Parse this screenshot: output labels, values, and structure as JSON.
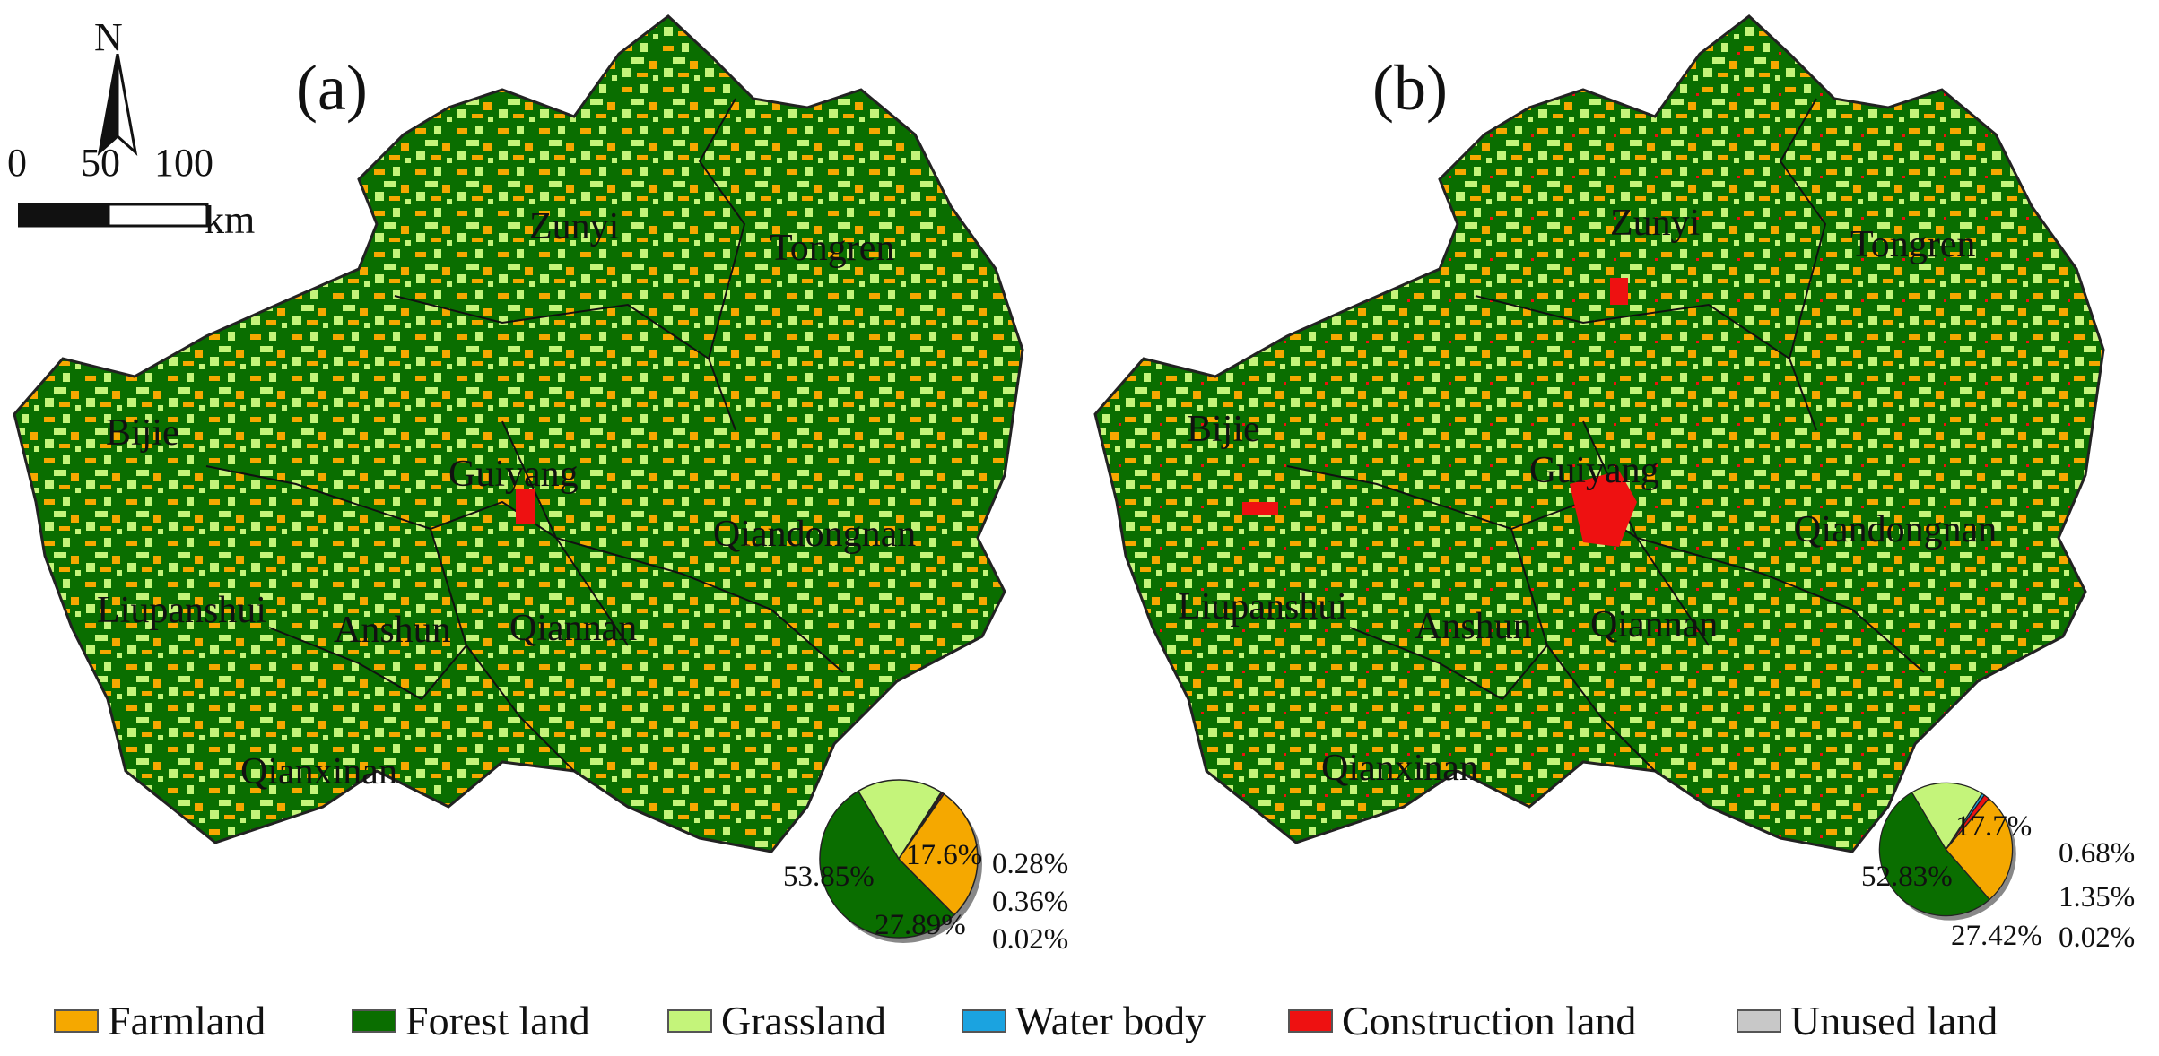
{
  "north_arrow": {
    "letter": "N"
  },
  "scale_bar": {
    "ticks": [
      "0",
      "50",
      "100"
    ],
    "unit": "km"
  },
  "colors": {
    "farmland": "#f5a800",
    "forest": "#0a6e00",
    "grassland": "#c4f47a",
    "water": "#1ba3e0",
    "construction": "#ee1111",
    "unused": "#c8c8c8"
  },
  "panels": [
    {
      "label": "(a)",
      "regions": [
        "Zunyi",
        "Tongren",
        "Bijie",
        "Guiyang",
        "Qiandongnan",
        "Liupanshui",
        "Anshun",
        "Qiannan",
        "Qianxinan"
      ],
      "pie_labels": {
        "forest": "53.85%",
        "grassland": "17.6%",
        "farmland": "27.89%",
        "water": "0.28%",
        "construction": "0.36%",
        "unused": "0.02%"
      }
    },
    {
      "label": "(b)",
      "regions": [
        "Zunyi",
        "Tongren",
        "Bijie",
        "Guiyang",
        "Qiandongnan",
        "Liupanshui",
        "Anshun",
        "Qiannan",
        "Qianxinan"
      ],
      "pie_labels": {
        "forest": "52.83%",
        "grassland": "17.7%",
        "farmland": "27.42%",
        "water": "0.68%",
        "construction": "1.35%",
        "unused": "0.02%"
      }
    }
  ],
  "chart_data": [
    {
      "type": "pie",
      "categories": [
        "Forest land",
        "Grassland",
        "Water body",
        "Construction land",
        "Unused land",
        "Farmland"
      ],
      "values": [
        53.85,
        17.6,
        0.28,
        0.36,
        0.02,
        27.89
      ]
    },
    {
      "type": "pie",
      "categories": [
        "Forest land",
        "Grassland",
        "Water body",
        "Construction land",
        "Unused land",
        "Farmland"
      ],
      "values": [
        52.83,
        17.7,
        0.68,
        1.35,
        0.02,
        27.42
      ]
    }
  ],
  "legend": [
    {
      "label": "Farmland",
      "color": "#f5a800"
    },
    {
      "label": "Forest land",
      "color": "#0a6e00"
    },
    {
      "label": "Grassland",
      "color": "#c4f47a"
    },
    {
      "label": "Water body",
      "color": "#1ba3e0"
    },
    {
      "label": "Construction land",
      "color": "#ee1111"
    },
    {
      "label": "Unused land",
      "color": "#c8c8c8"
    }
  ]
}
